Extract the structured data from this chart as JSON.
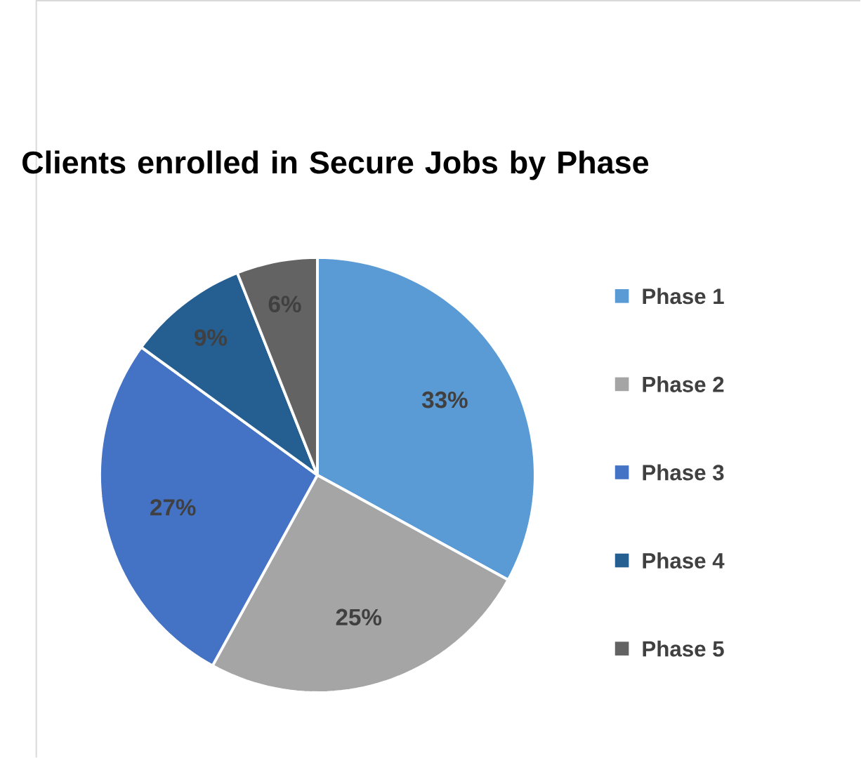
{
  "chart_data": {
    "type": "pie",
    "title": "Clients enrolled in Secure Jobs by Phase",
    "categories": [
      "Phase 1",
      "Phase 2",
      "Phase 3",
      "Phase 4",
      "Phase 5"
    ],
    "values": [
      33,
      25,
      27,
      9,
      6
    ],
    "value_labels": [
      "33%",
      "25%",
      "27%",
      "9%",
      "6%"
    ],
    "colors": [
      "#5b9bd5",
      "#a5a5a5",
      "#4472c4",
      "#255e91",
      "#636363"
    ],
    "legend": "right"
  }
}
